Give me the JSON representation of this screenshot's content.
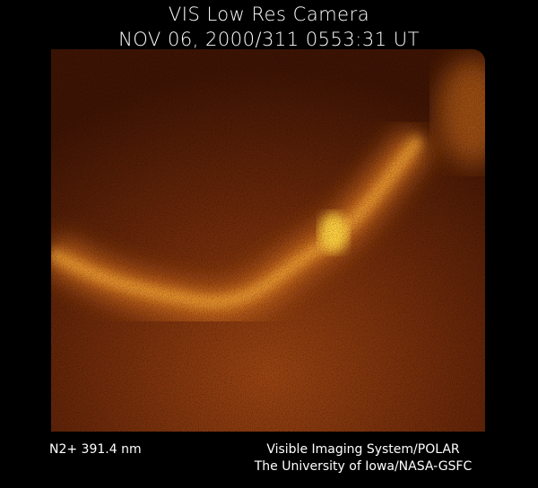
{
  "header": {
    "instrument": "VIS Low Res Camera",
    "timestamp": "NOV 06, 2000/311 0553:31 UT"
  },
  "image": {
    "subject": "aurora-oval-image",
    "colors": {
      "background": "#000000",
      "dark": "#4a1806",
      "mid": "#9a4010",
      "bright": "#ffd040"
    }
  },
  "footer": {
    "wavelength": "N2+ 391.4 nm",
    "credit_line1": "Visible Imaging System/POLAR",
    "credit_line2": "The University of Iowa/NASA-GSFC"
  }
}
